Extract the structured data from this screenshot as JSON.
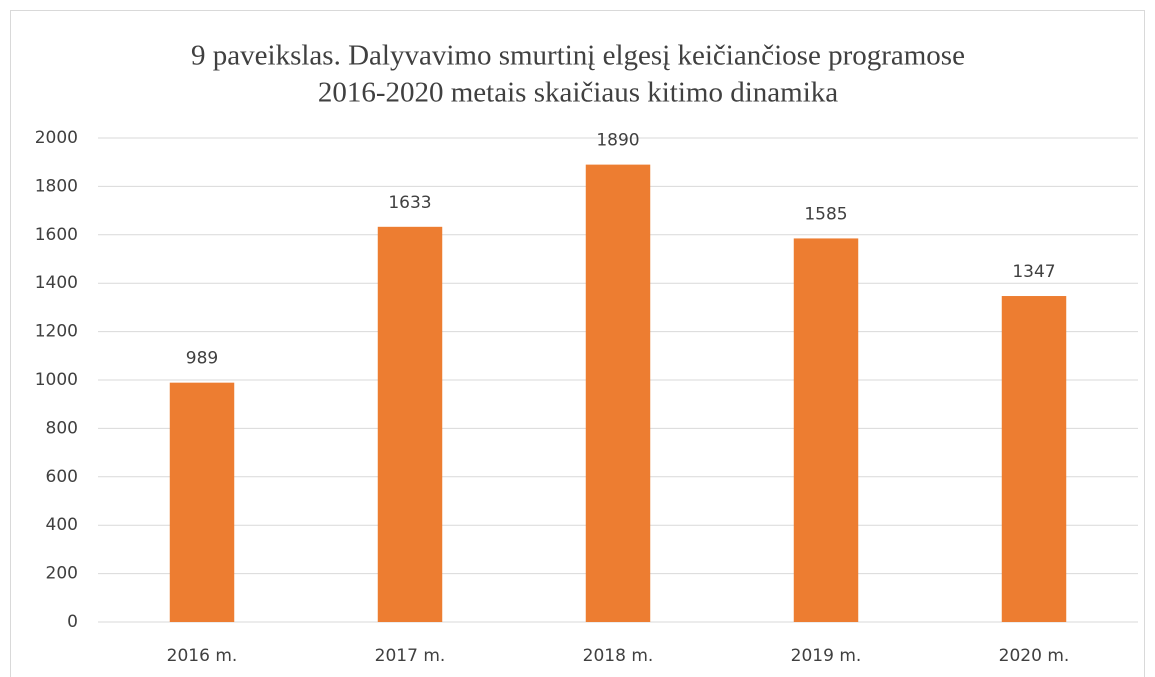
{
  "chart_data": {
    "type": "bar",
    "title": [
      "9 paveikslas. Dalyvavimo smurtinį elgesį keičiančiose programose",
      "2016-2020 metais skaičiaus kitimo dinamika"
    ],
    "categories": [
      "2016 m.",
      "2017 m.",
      "2018 m.",
      "2019 m.",
      "2020 m."
    ],
    "values": [
      989,
      1633,
      1890,
      1585,
      1347
    ],
    "color": "#ed7d31",
    "ylim": [
      0,
      2000
    ],
    "yticks": [
      0,
      200,
      400,
      600,
      800,
      1000,
      1200,
      1400,
      1600,
      1800,
      2000
    ],
    "grid": true
  }
}
